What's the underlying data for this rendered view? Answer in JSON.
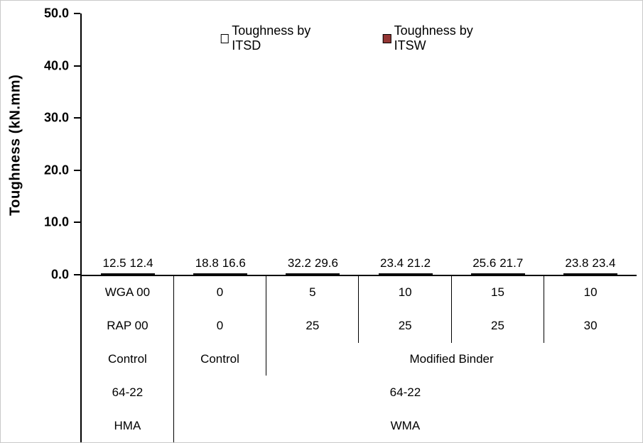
{
  "chart_data": {
    "type": "bar",
    "title": "",
    "ylabel": "Toughness (kN.mm)",
    "xlabel": "",
    "ylim": [
      0,
      50
    ],
    "yticks": [
      "0.0",
      "10.0",
      "20.0",
      "30.0",
      "40.0",
      "50.0"
    ],
    "grid": false,
    "legend_position": "top-center",
    "value_label_decimals": 1,
    "series": [
      {
        "name": "Toughness by ITSD",
        "color": "#FFFFFF",
        "border_color": "#000000",
        "values": [
          12.5,
          18.8,
          32.2,
          23.4,
          25.6,
          23.8
        ]
      },
      {
        "name": "Toughness by ITSW",
        "color": "#943634",
        "border_color": "#000000",
        "values": [
          12.4,
          16.6,
          29.6,
          21.2,
          21.7,
          23.4
        ]
      }
    ],
    "category_table": {
      "rows": [
        {
          "cells": [
            "WGA 00",
            "0",
            "5",
            "10",
            "15",
            "10"
          ]
        },
        {
          "cells": [
            "RAP 00",
            "0",
            "25",
            "25",
            "25",
            "30"
          ]
        },
        {
          "cells": [
            "Control",
            "Control",
            "Modified Binder"
          ]
        },
        {
          "cells": [
            "64-22",
            "64-22"
          ]
        },
        {
          "cells": [
            "HMA",
            "WMA"
          ]
        }
      ]
    }
  }
}
